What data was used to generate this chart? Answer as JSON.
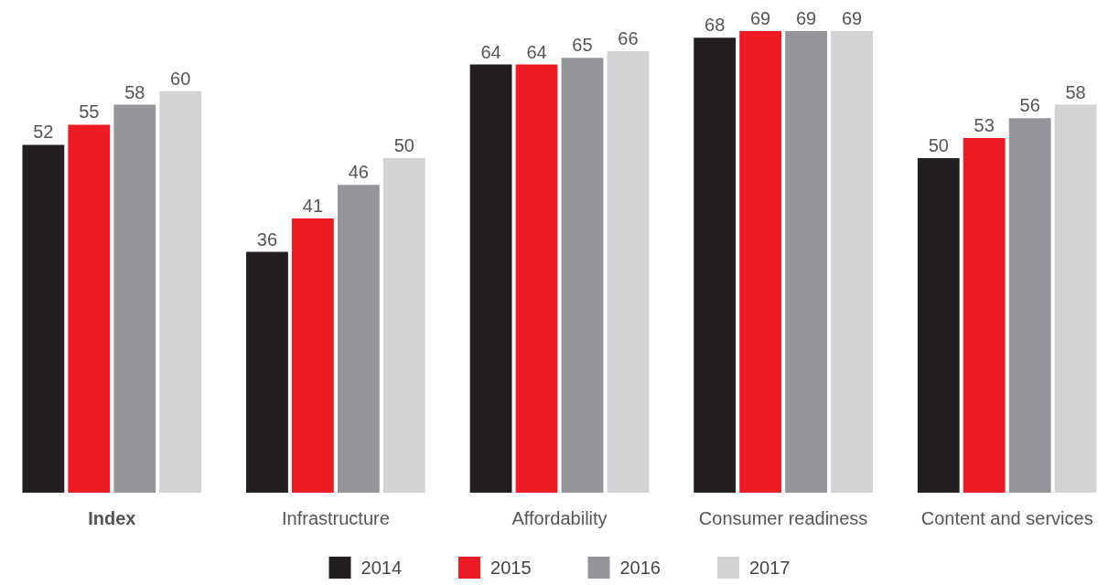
{
  "chart_data": {
    "type": "bar",
    "categories": [
      "Index",
      "Infrastructure",
      "Affordability",
      "Consumer readiness",
      "Content and services"
    ],
    "series": [
      {
        "name": "2014",
        "color": "#231f20",
        "values": [
          52,
          36,
          64,
          68,
          50
        ]
      },
      {
        "name": "2015",
        "color": "#ed1c24",
        "values": [
          55,
          41,
          64,
          69,
          53
        ]
      },
      {
        "name": "2016",
        "color": "#939598",
        "values": [
          58,
          46,
          65,
          69,
          56
        ]
      },
      {
        "name": "2017",
        "color": "#d1d3d4",
        "values": [
          60,
          50,
          66,
          69,
          58
        ]
      }
    ],
    "data_labels": true,
    "legend": "bottom"
  }
}
